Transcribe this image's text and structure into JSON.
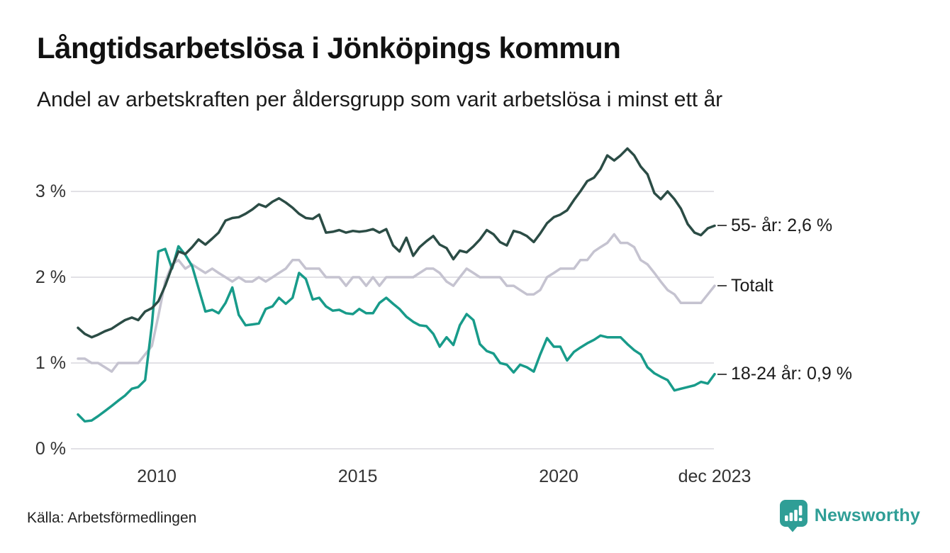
{
  "title": "Långtidsarbetslösa i Jönköpings kommun",
  "subtitle": "Andel av arbetskraften per åldersgrupp som varit arbetslösa i minst ett år",
  "source": "Källa: Arbetsförmedlingen",
  "branding": {
    "name": "Newsworthy",
    "color": "#2f9e96"
  },
  "chart_data": {
    "type": "line",
    "title": "Långtidsarbetslösa i Jönköpings kommun",
    "subtitle": "Andel av arbetskraften per åldersgrupp som varit arbetslösa i minst ett år",
    "x_unit": "decimal_year (monthly data Feb 2008 – Dec 2023, sampled every 2 months)",
    "grid": "horizontal",
    "legend_position": "right-end-labels",
    "xlim": [
      2008.08,
      2023.92
    ],
    "ylim": [
      0,
      3.6
    ],
    "yticks": [
      {
        "value": 0,
        "label": "0 %"
      },
      {
        "value": 1,
        "label": "1 %"
      },
      {
        "value": 2,
        "label": "2 %"
      },
      {
        "value": 3,
        "label": "3 %"
      }
    ],
    "xticks": [
      {
        "value": 2010.04,
        "label": "2010"
      },
      {
        "value": 2015.04,
        "label": "2015"
      },
      {
        "value": 2020.04,
        "label": "2020"
      },
      {
        "value": 2023.92,
        "label": "dec 2023"
      }
    ],
    "x": [
      2008.08,
      2008.25,
      2008.42,
      2008.58,
      2008.75,
      2008.92,
      2009.08,
      2009.25,
      2009.42,
      2009.58,
      2009.75,
      2009.92,
      2010.08,
      2010.25,
      2010.42,
      2010.58,
      2010.75,
      2010.92,
      2011.08,
      2011.25,
      2011.42,
      2011.58,
      2011.75,
      2011.92,
      2012.08,
      2012.25,
      2012.42,
      2012.58,
      2012.75,
      2012.92,
      2013.08,
      2013.25,
      2013.42,
      2013.58,
      2013.75,
      2013.92,
      2014.08,
      2014.25,
      2014.42,
      2014.58,
      2014.75,
      2014.92,
      2015.08,
      2015.25,
      2015.42,
      2015.58,
      2015.75,
      2015.92,
      2016.08,
      2016.25,
      2016.42,
      2016.58,
      2016.75,
      2016.92,
      2017.08,
      2017.25,
      2017.42,
      2017.58,
      2017.75,
      2017.92,
      2018.08,
      2018.25,
      2018.42,
      2018.58,
      2018.75,
      2018.92,
      2019.08,
      2019.25,
      2019.42,
      2019.58,
      2019.75,
      2019.92,
      2020.08,
      2020.25,
      2020.42,
      2020.58,
      2020.75,
      2020.92,
      2021.08,
      2021.25,
      2021.42,
      2021.58,
      2021.75,
      2021.92,
      2022.08,
      2022.25,
      2022.42,
      2022.58,
      2022.75,
      2022.92,
      2023.08,
      2023.25,
      2023.42,
      2023.58,
      2023.75,
      2023.92
    ],
    "series": [
      {
        "name": "55- år",
        "end_label": "55- år: 2,6 %",
        "end_value_text": "2,6 %",
        "color": "#2b4c45",
        "values": [
          1.41,
          1.34,
          1.3,
          1.33,
          1.37,
          1.4,
          1.45,
          1.5,
          1.53,
          1.5,
          1.6,
          1.64,
          1.72,
          1.9,
          2.12,
          2.3,
          2.27,
          2.35,
          2.44,
          2.38,
          2.45,
          2.52,
          2.66,
          2.69,
          2.7,
          2.74,
          2.79,
          2.85,
          2.82,
          2.88,
          2.92,
          2.87,
          2.81,
          2.74,
          2.69,
          2.68,
          2.73,
          2.52,
          2.53,
          2.55,
          2.52,
          2.54,
          2.53,
          2.54,
          2.56,
          2.52,
          2.56,
          2.37,
          2.3,
          2.46,
          2.25,
          2.35,
          2.42,
          2.48,
          2.38,
          2.34,
          2.21,
          2.31,
          2.29,
          2.36,
          2.44,
          2.55,
          2.5,
          2.41,
          2.37,
          2.54,
          2.52,
          2.48,
          2.41,
          2.51,
          2.63,
          2.7,
          2.73,
          2.78,
          2.9,
          3.0,
          3.12,
          3.16,
          3.26,
          3.42,
          3.36,
          3.42,
          3.5,
          3.42,
          3.29,
          3.2,
          2.98,
          2.91,
          3.0,
          2.91,
          2.8,
          2.62,
          2.52,
          2.49,
          2.57,
          2.6
        ]
      },
      {
        "name": "Totalt",
        "end_label": "Totalt",
        "end_value_text": "1,9 %",
        "color": "#c5c3d0",
        "values": [
          1.05,
          1.05,
          1.0,
          1.0,
          0.95,
          0.9,
          1.0,
          1.0,
          1.0,
          1.0,
          1.1,
          1.2,
          1.55,
          1.95,
          2.15,
          2.2,
          2.1,
          2.15,
          2.1,
          2.05,
          2.1,
          2.05,
          2.0,
          1.95,
          2.0,
          1.95,
          1.95,
          2.0,
          1.95,
          2.0,
          2.05,
          2.1,
          2.2,
          2.2,
          2.1,
          2.1,
          2.1,
          2.0,
          2.0,
          2.0,
          1.9,
          2.0,
          2.0,
          1.9,
          2.0,
          1.9,
          2.0,
          2.0,
          2.0,
          2.0,
          2.0,
          2.05,
          2.1,
          2.1,
          2.05,
          1.95,
          1.9,
          2.0,
          2.1,
          2.05,
          2.0,
          2.0,
          2.0,
          2.0,
          1.9,
          1.9,
          1.85,
          1.8,
          1.8,
          1.85,
          2.0,
          2.05,
          2.1,
          2.1,
          2.1,
          2.2,
          2.2,
          2.3,
          2.35,
          2.4,
          2.5,
          2.4,
          2.4,
          2.35,
          2.2,
          2.15,
          2.05,
          1.95,
          1.85,
          1.8,
          1.7,
          1.7,
          1.7,
          1.7,
          1.8,
          1.9
        ]
      },
      {
        "name": "18-24 år",
        "end_label": "18-24 år: 0,9 %",
        "end_value_text": "0,9 %",
        "color": "#189b8a",
        "values": [
          0.4,
          0.32,
          0.33,
          0.38,
          0.44,
          0.5,
          0.56,
          0.62,
          0.7,
          0.72,
          0.8,
          1.45,
          2.3,
          2.33,
          2.1,
          2.36,
          2.26,
          2.13,
          1.87,
          1.6,
          1.62,
          1.58,
          1.7,
          1.88,
          1.56,
          1.44,
          1.45,
          1.46,
          1.63,
          1.66,
          1.76,
          1.69,
          1.76,
          2.05,
          1.98,
          1.74,
          1.76,
          1.66,
          1.61,
          1.62,
          1.58,
          1.57,
          1.63,
          1.58,
          1.58,
          1.7,
          1.76,
          1.69,
          1.63,
          1.54,
          1.48,
          1.44,
          1.43,
          1.34,
          1.19,
          1.3,
          1.21,
          1.44,
          1.57,
          1.5,
          1.22,
          1.14,
          1.11,
          1.0,
          0.98,
          0.89,
          0.98,
          0.95,
          0.9,
          1.1,
          1.29,
          1.19,
          1.19,
          1.03,
          1.13,
          1.18,
          1.23,
          1.27,
          1.32,
          1.3,
          1.3,
          1.3,
          1.22,
          1.15,
          1.1,
          0.95,
          0.88,
          0.84,
          0.8,
          0.68,
          0.7,
          0.72,
          0.74,
          0.78,
          0.76,
          0.87
        ]
      }
    ]
  }
}
